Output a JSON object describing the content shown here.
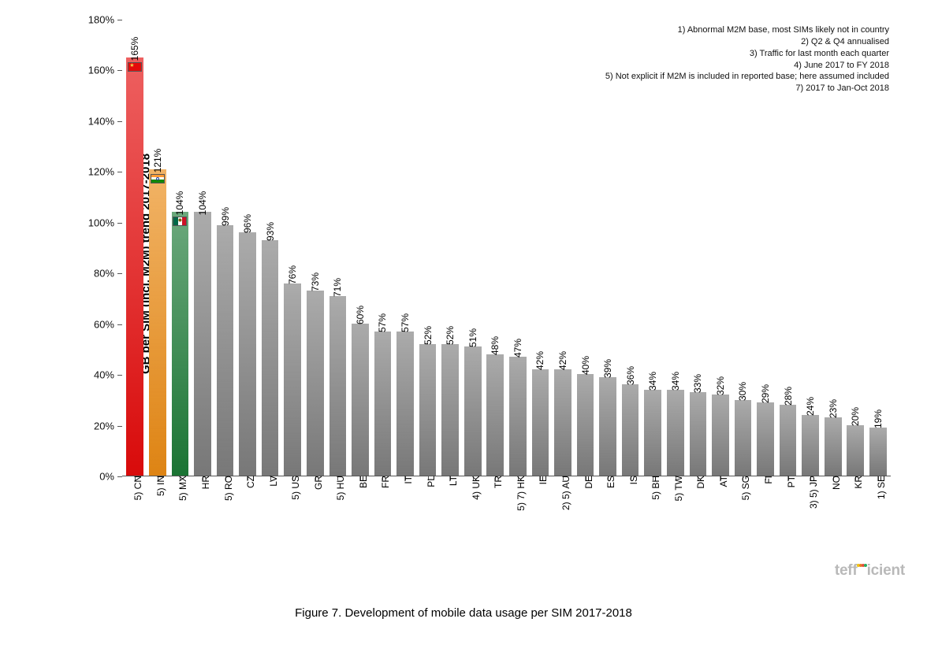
{
  "chart": {
    "type": "bar",
    "y_axis_title": "GB per SIM (incl. M2M) trend 2017-2018",
    "y_axis_title_fontsize": 15,
    "y_ticks": [
      0,
      20,
      40,
      60,
      80,
      100,
      120,
      140,
      160,
      180
    ],
    "y_tick_label_suffix": "%",
    "y_tick_fontsize": 13,
    "ylim": [
      0,
      180
    ],
    "bar_default_color": "#7e7e7e",
    "highlight_colors": {
      "CN": "#e40b0b",
      "IN": "#ea8b15",
      "MX": "#1c7a36"
    },
    "background_color": "#ffffff",
    "axis_color": "#555555",
    "value_label_fontsize": 12,
    "x_label_fontsize": 12,
    "data": [
      {
        "x": "5) CN",
        "v": 165,
        "color": "#e40b0b",
        "flag": "CN"
      },
      {
        "x": "5) IN",
        "v": 121,
        "color": "#ea8b15",
        "flag": "IN"
      },
      {
        "x": "5) MX",
        "v": 104,
        "color": "#1c7a36",
        "flag": "MX"
      },
      {
        "x": "HR",
        "v": 104
      },
      {
        "x": "5) RO",
        "v": 99
      },
      {
        "x": "CZ",
        "v": 96
      },
      {
        "x": "LV",
        "v": 93
      },
      {
        "x": "5) US",
        "v": 76
      },
      {
        "x": "GR",
        "v": 73
      },
      {
        "x": "5) HU",
        "v": 71
      },
      {
        "x": "BE",
        "v": 60
      },
      {
        "x": "FR",
        "v": 57
      },
      {
        "x": "IT",
        "v": 57
      },
      {
        "x": "PL",
        "v": 52
      },
      {
        "x": "LT",
        "v": 52
      },
      {
        "x": "4) UK",
        "v": 51
      },
      {
        "x": "TR",
        "v": 48
      },
      {
        "x": "5) 7) HK",
        "v": 47
      },
      {
        "x": "IE",
        "v": 42
      },
      {
        "x": "2) 5) AU",
        "v": 42
      },
      {
        "x": "DE",
        "v": 40
      },
      {
        "x": "ES",
        "v": 39
      },
      {
        "x": "IS",
        "v": 36
      },
      {
        "x": "5) BH",
        "v": 34
      },
      {
        "x": "5) TW",
        "v": 34
      },
      {
        "x": "DK",
        "v": 33
      },
      {
        "x": "AT",
        "v": 32
      },
      {
        "x": "5) SG",
        "v": 30
      },
      {
        "x": "FI",
        "v": 29
      },
      {
        "x": "PT",
        "v": 28
      },
      {
        "x": "3) 5) JP",
        "v": 24
      },
      {
        "x": "NO",
        "v": 23
      },
      {
        "x": "KR",
        "v": 20
      },
      {
        "x": "1) SE",
        "v": 19
      }
    ],
    "flags": {
      "CN": {
        "stripes": [
          "#e40b0b"
        ],
        "star": true,
        "star_color": "#f3d24a"
      },
      "IN": {
        "stripes_h": [
          "#ff9933",
          "#ffffff",
          "#138808"
        ],
        "wheel": "#1a3f9c"
      },
      "MX": {
        "stripes": [
          "#006847",
          "#ffffff",
          "#ce1126"
        ],
        "emblem": true
      }
    }
  },
  "notes": [
    "1) Abnormal M2M base, most SIMs likely not in country",
    "2) Q2 & Q4 annualised",
    "3) Traffic for last month each quarter",
    "4) June 2017 to FY 2018",
    "5) Not explicit if M2M is included in reported base; here assumed included",
    "7) 2017 to Jan-Oct 2018"
  ],
  "notes_fontsize": 11,
  "logo": {
    "text": "tefficient",
    "color": "#b9b9b9",
    "dot_colors": [
      "#f1c40f",
      "#e67e22",
      "#e74c3c",
      "#27ae60"
    ]
  },
  "caption": "Figure 7. Development of mobile data usage per SIM 2017-2018",
  "caption_fontsize": 15
}
